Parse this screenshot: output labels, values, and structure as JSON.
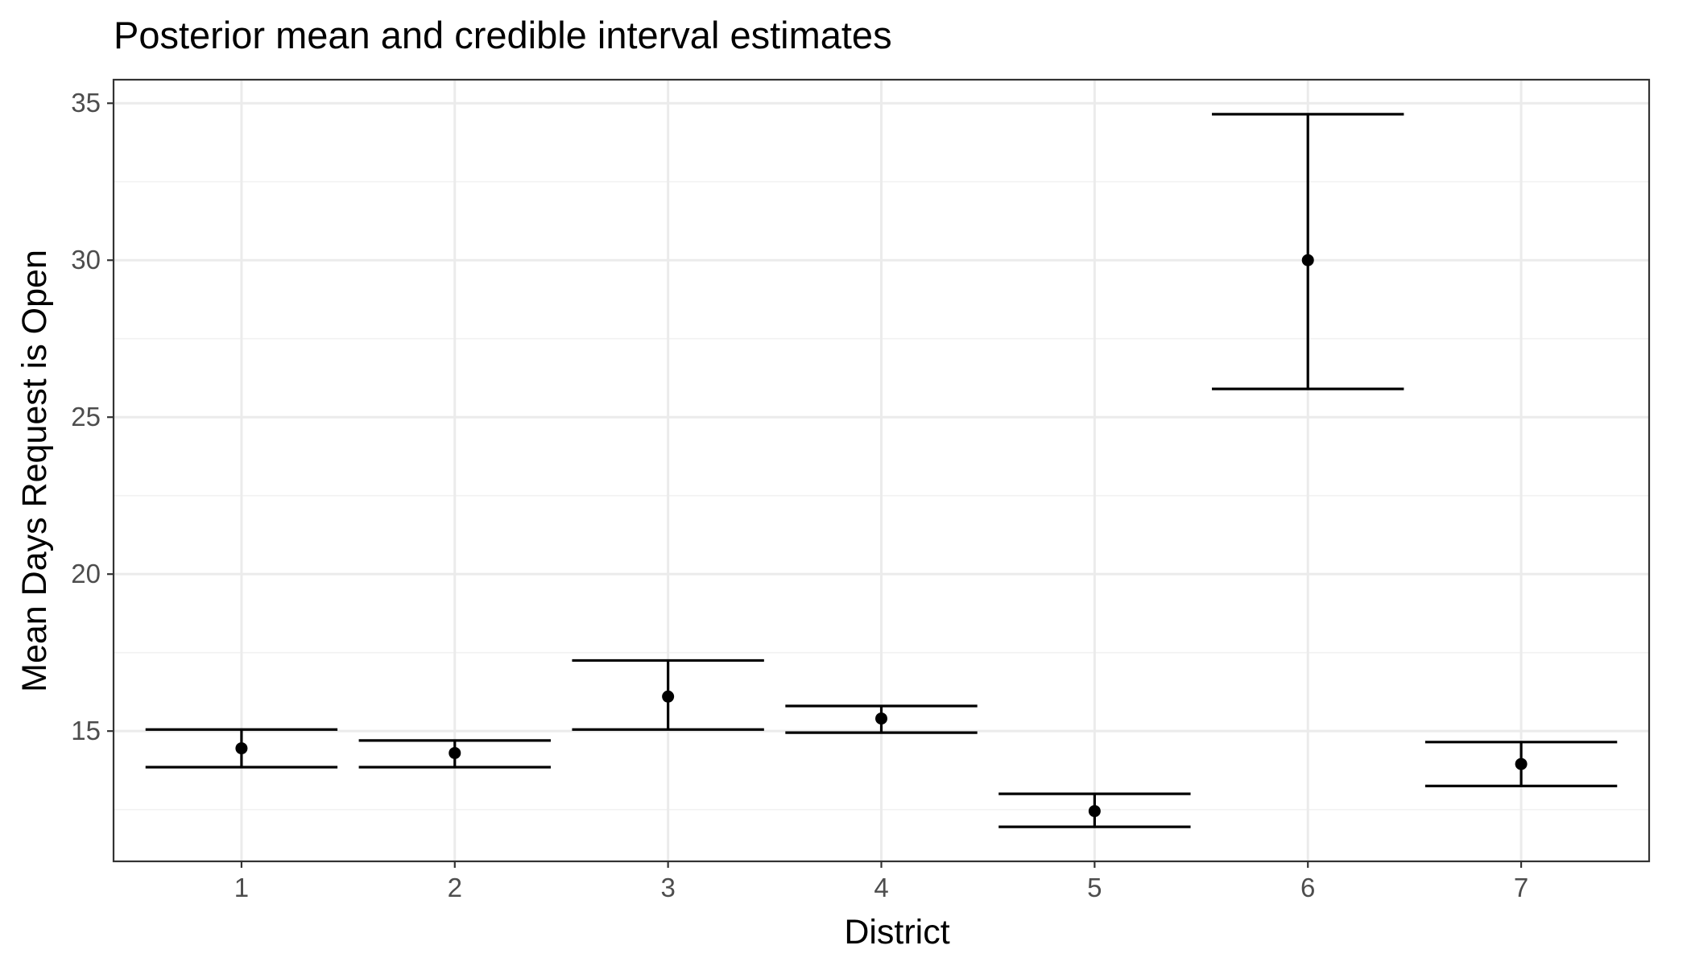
{
  "chart_data": {
    "type": "errorbar",
    "title": "Posterior mean and credible interval estimates",
    "xlabel": "District",
    "ylabel": "Mean Days Request is Open",
    "categories": [
      "1",
      "2",
      "3",
      "4",
      "5",
      "6",
      "7"
    ],
    "mean": [
      14.45,
      14.3,
      16.1,
      15.4,
      12.45,
      30.0,
      13.95
    ],
    "lower": [
      13.85,
      13.85,
      15.05,
      14.95,
      11.95,
      25.9,
      13.25
    ],
    "upper": [
      15.05,
      14.7,
      17.25,
      15.8,
      13.0,
      34.65,
      14.65
    ],
    "ylim": [
      10.85,
      35.75
    ],
    "y_ticks": [
      15,
      20,
      25,
      30,
      35
    ],
    "grid": true,
    "theme": "bw"
  }
}
